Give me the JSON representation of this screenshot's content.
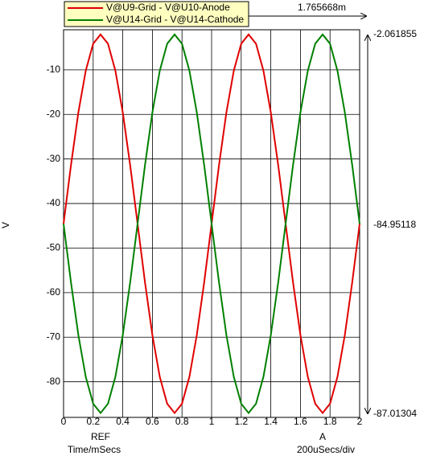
{
  "chart_data": {
    "type": "line",
    "y_label": "V",
    "x_label": "Time/mSecs",
    "x_scale_label": "200uSecs/div",
    "cursor_delta_label": "1.765668m",
    "cursor_labels": [
      "-2.061855",
      "-84.95118",
      "-87.01304"
    ],
    "cursors": [
      {
        "label": "REF",
        "x": 0.25
      },
      {
        "label": "A",
        "x": 1.75
      }
    ],
    "xlim": [
      0,
      2
    ],
    "xticks": [
      0,
      0.2,
      0.4,
      0.6,
      0.8,
      1,
      1.2,
      1.4,
      1.6,
      1.8,
      2
    ],
    "ylim": [
      -88,
      -1
    ],
    "yticks": [
      -10,
      -20,
      -30,
      -40,
      -50,
      -60,
      -70,
      -80
    ],
    "grid": true,
    "x": [
      0,
      0.05,
      0.1,
      0.15,
      0.2,
      0.25,
      0.3,
      0.35,
      0.4,
      0.45,
      0.5,
      0.55,
      0.6,
      0.65,
      0.7,
      0.75,
      0.8,
      0.85,
      0.9,
      0.95,
      1,
      1.05,
      1.1,
      1.15,
      1.2,
      1.25,
      1.3,
      1.35,
      1.4,
      1.45,
      1.5,
      1.55,
      1.6,
      1.65,
      1.7,
      1.75,
      1.8,
      1.85,
      1.9,
      1.95,
      2
    ],
    "series": [
      {
        "name": "V@U9-Grid - V@U10-Anode",
        "color": "#e00000",
        "values": [
          -44.54,
          -31.41,
          -19.56,
          -10.17,
          -4.14,
          -2.06,
          -4.14,
          -10.17,
          -19.56,
          -31.41,
          -44.54,
          -57.67,
          -69.52,
          -78.91,
          -84.94,
          -87.02,
          -84.94,
          -78.91,
          -69.52,
          -57.67,
          -44.54,
          -31.41,
          -19.56,
          -10.17,
          -4.14,
          -2.06,
          -4.14,
          -10.17,
          -19.56,
          -31.41,
          -44.54,
          -57.67,
          -69.52,
          -78.91,
          -84.94,
          -87.02,
          -84.94,
          -78.91,
          -69.52,
          -57.67,
          -44.54
        ]
      },
      {
        "name": "V@U14-Grid - V@U14-Cathode",
        "color": "#008000",
        "values": [
          -44.54,
          -57.67,
          -69.52,
          -78.91,
          -84.94,
          -87.02,
          -84.94,
          -78.91,
          -69.52,
          -57.67,
          -44.54,
          -31.41,
          -19.56,
          -10.17,
          -4.14,
          -2.06,
          -4.14,
          -10.17,
          -19.56,
          -31.41,
          -44.54,
          -57.67,
          -69.52,
          -78.91,
          -84.94,
          -87.02,
          -84.94,
          -78.91,
          -69.52,
          -57.67,
          -44.54,
          -31.41,
          -19.56,
          -10.17,
          -4.14,
          -2.06,
          -4.14,
          -10.17,
          -19.56,
          -31.41,
          -44.54
        ]
      }
    ]
  }
}
